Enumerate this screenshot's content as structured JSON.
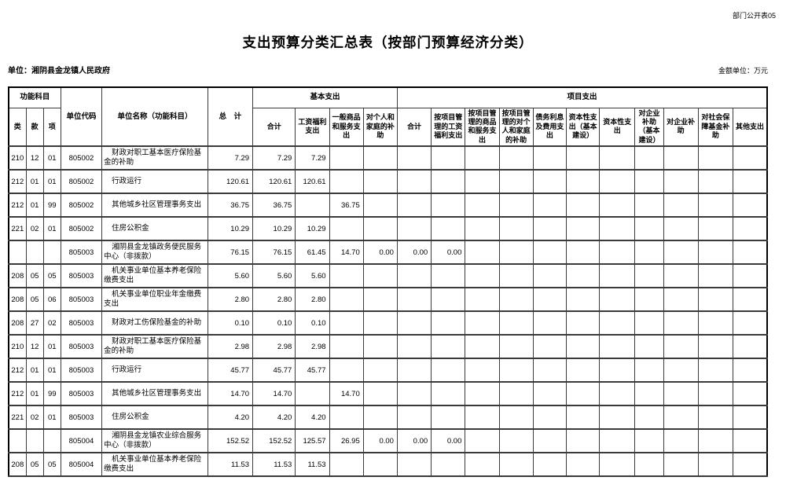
{
  "meta": {
    "doc_code": "部门公开表05",
    "title": "支出预算分类汇总表（按部门预算经济分类）",
    "unit_label": "单位：湘阴县金龙镇人民政府",
    "amount_unit": "金额单位：万元"
  },
  "table": {
    "header": {
      "func_group": "功能科目",
      "func_cols": [
        "类",
        "款",
        "项"
      ],
      "unit_code": "单位代码",
      "unit_name": "单位名称（功能科目）",
      "total": "总　计",
      "basic_group": "基本支出",
      "basic_cols": [
        "合计",
        "工资福利支出",
        "一般商品和服务支出",
        "对个人和家庭的补助"
      ],
      "project_group": "项目支出",
      "project_cols": [
        "合计",
        "按项目管理的工资福利支出",
        "按项目管理的商品和服务支出",
        "按项目管理的对个人和家庭的补助",
        "债务利息及费用支出",
        "资本性支出（基本建设）",
        "资本性支出",
        "对企业补助（基本建设）",
        "对企业补助",
        "对社会保障基金补助",
        "其他支出"
      ]
    },
    "rows": [
      {
        "func": [
          "210",
          "12",
          "01"
        ],
        "code": "805002",
        "name": "财政对职工基本医疗保险基金的补助",
        "values": [
          "7.29",
          "7.29",
          "7.29",
          "",
          "",
          "",
          "",
          "",
          "",
          "",
          "",
          "",
          "",
          "",
          "",
          ""
        ]
      },
      {
        "func": [
          "212",
          "01",
          "01"
        ],
        "code": "805002",
        "name": "行政运行",
        "values": [
          "120.61",
          "120.61",
          "120.61",
          "",
          "",
          "",
          "",
          "",
          "",
          "",
          "",
          "",
          "",
          "",
          "",
          ""
        ]
      },
      {
        "func": [
          "212",
          "01",
          "99"
        ],
        "code": "805002",
        "name": "其他城乡社区管理事务支出",
        "values": [
          "36.75",
          "36.75",
          "",
          "36.75",
          "",
          "",
          "",
          "",
          "",
          "",
          "",
          "",
          "",
          "",
          "",
          ""
        ]
      },
      {
        "func": [
          "221",
          "02",
          "01"
        ],
        "code": "805002",
        "name": "住房公积金",
        "values": [
          "10.29",
          "10.29",
          "10.29",
          "",
          "",
          "",
          "",
          "",
          "",
          "",
          "",
          "",
          "",
          "",
          "",
          ""
        ]
      },
      {
        "func": [
          "",
          "",
          ""
        ],
        "code": "805003",
        "name": "湘阴县金龙镇政务便民服务中心（非拨款）",
        "values": [
          "76.15",
          "76.15",
          "61.45",
          "14.70",
          "0.00",
          "0.00",
          "0.00",
          "",
          "",
          "",
          "",
          "",
          "",
          "",
          "",
          ""
        ]
      },
      {
        "func": [
          "208",
          "05",
          "05"
        ],
        "code": "805003",
        "name": "机关事业单位基本养老保险缴费支出",
        "values": [
          "5.60",
          "5.60",
          "5.60",
          "",
          "",
          "",
          "",
          "",
          "",
          "",
          "",
          "",
          "",
          "",
          "",
          ""
        ]
      },
      {
        "func": [
          "208",
          "05",
          "06"
        ],
        "code": "805003",
        "name": "机关事业单位职业年金缴费支出",
        "values": [
          "2.80",
          "2.80",
          "2.80",
          "",
          "",
          "",
          "",
          "",
          "",
          "",
          "",
          "",
          "",
          "",
          "",
          ""
        ]
      },
      {
        "func": [
          "208",
          "27",
          "02"
        ],
        "code": "805003",
        "name": "财政对工伤保险基金的补助",
        "values": [
          "0.10",
          "0.10",
          "0.10",
          "",
          "",
          "",
          "",
          "",
          "",
          "",
          "",
          "",
          "",
          "",
          "",
          ""
        ]
      },
      {
        "func": [
          "210",
          "12",
          "01"
        ],
        "code": "805003",
        "name": "财政对职工基本医疗保险基金的补助",
        "values": [
          "2.98",
          "2.98",
          "2.98",
          "",
          "",
          "",
          "",
          "",
          "",
          "",
          "",
          "",
          "",
          "",
          "",
          ""
        ]
      },
      {
        "func": [
          "212",
          "01",
          "01"
        ],
        "code": "805003",
        "name": "行政运行",
        "values": [
          "45.77",
          "45.77",
          "45.77",
          "",
          "",
          "",
          "",
          "",
          "",
          "",
          "",
          "",
          "",
          "",
          "",
          ""
        ]
      },
      {
        "func": [
          "212",
          "01",
          "99"
        ],
        "code": "805003",
        "name": "其他城乡社区管理事务支出",
        "values": [
          "14.70",
          "14.70",
          "",
          "14.70",
          "",
          "",
          "",
          "",
          "",
          "",
          "",
          "",
          "",
          "",
          "",
          ""
        ]
      },
      {
        "func": [
          "221",
          "02",
          "01"
        ],
        "code": "805003",
        "name": "住房公积金",
        "values": [
          "4.20",
          "4.20",
          "4.20",
          "",
          "",
          "",
          "",
          "",
          "",
          "",
          "",
          "",
          "",
          "",
          "",
          ""
        ]
      },
      {
        "func": [
          "",
          "",
          ""
        ],
        "code": "805004",
        "name": "湘阴县金龙镇农业综合服务中心（非拨款）",
        "values": [
          "152.52",
          "152.52",
          "125.57",
          "26.95",
          "0.00",
          "0.00",
          "0.00",
          "",
          "",
          "",
          "",
          "",
          "",
          "",
          "",
          ""
        ]
      },
      {
        "func": [
          "208",
          "05",
          "05"
        ],
        "code": "805004",
        "name": "机关事业单位基本养老保险缴费支出",
        "values": [
          "11.53",
          "11.53",
          "11.53",
          "",
          "",
          "",
          "",
          "",
          "",
          "",
          "",
          "",
          "",
          "",
          "",
          ""
        ]
      }
    ]
  }
}
